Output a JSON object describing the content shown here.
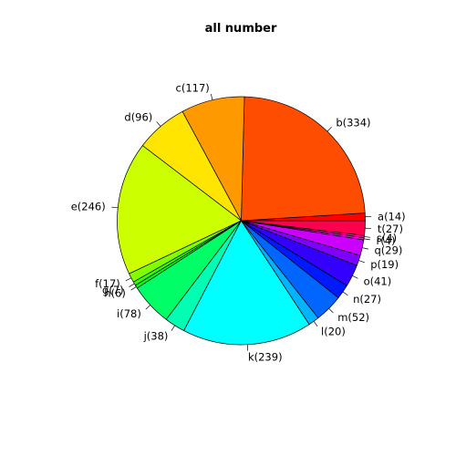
{
  "chart_data": {
    "type": "pie",
    "title": "all number",
    "clockwise": false,
    "start_angle_deg": 0,
    "slices": [
      {
        "label": "a(14)",
        "value": 14,
        "color": "#FF0000"
      },
      {
        "label": "b(334)",
        "value": 334,
        "color": "#FF4D00"
      },
      {
        "label": "c(117)",
        "value": 117,
        "color": "#FF9900"
      },
      {
        "label": "d(96)",
        "value": 96,
        "color": "#FFE500"
      },
      {
        "label": "e(246)",
        "value": 246,
        "color": "#CCFF00"
      },
      {
        "label": "f(17)",
        "value": 17,
        "color": "#80FF00"
      },
      {
        "label": "g(7)",
        "value": 7,
        "color": "#33FF00"
      },
      {
        "label": "h(6)",
        "value": 6,
        "color": "#00FF19"
      },
      {
        "label": "i(78)",
        "value": 78,
        "color": "#00FF66"
      },
      {
        "label": "j(38)",
        "value": 38,
        "color": "#00FFB2"
      },
      {
        "label": "k(239)",
        "value": 239,
        "color": "#00FFFF"
      },
      {
        "label": "l(20)",
        "value": 20,
        "color": "#00B3FF"
      },
      {
        "label": "m(52)",
        "value": 52,
        "color": "#0066FF"
      },
      {
        "label": "n(27)",
        "value": 27,
        "color": "#0019FF"
      },
      {
        "label": "o(41)",
        "value": 41,
        "color": "#3300FF"
      },
      {
        "label": "p(19)",
        "value": 19,
        "color": "#8000FF"
      },
      {
        "label": "q(29)",
        "value": 29,
        "color": "#CC00FF"
      },
      {
        "label": "r(4)",
        "value": 4,
        "color": "#FF00E6"
      },
      {
        "label": "s(4)",
        "value": 4,
        "color": "#FF0099"
      },
      {
        "label": "t(27)",
        "value": 27,
        "color": "#FF004D"
      }
    ]
  }
}
